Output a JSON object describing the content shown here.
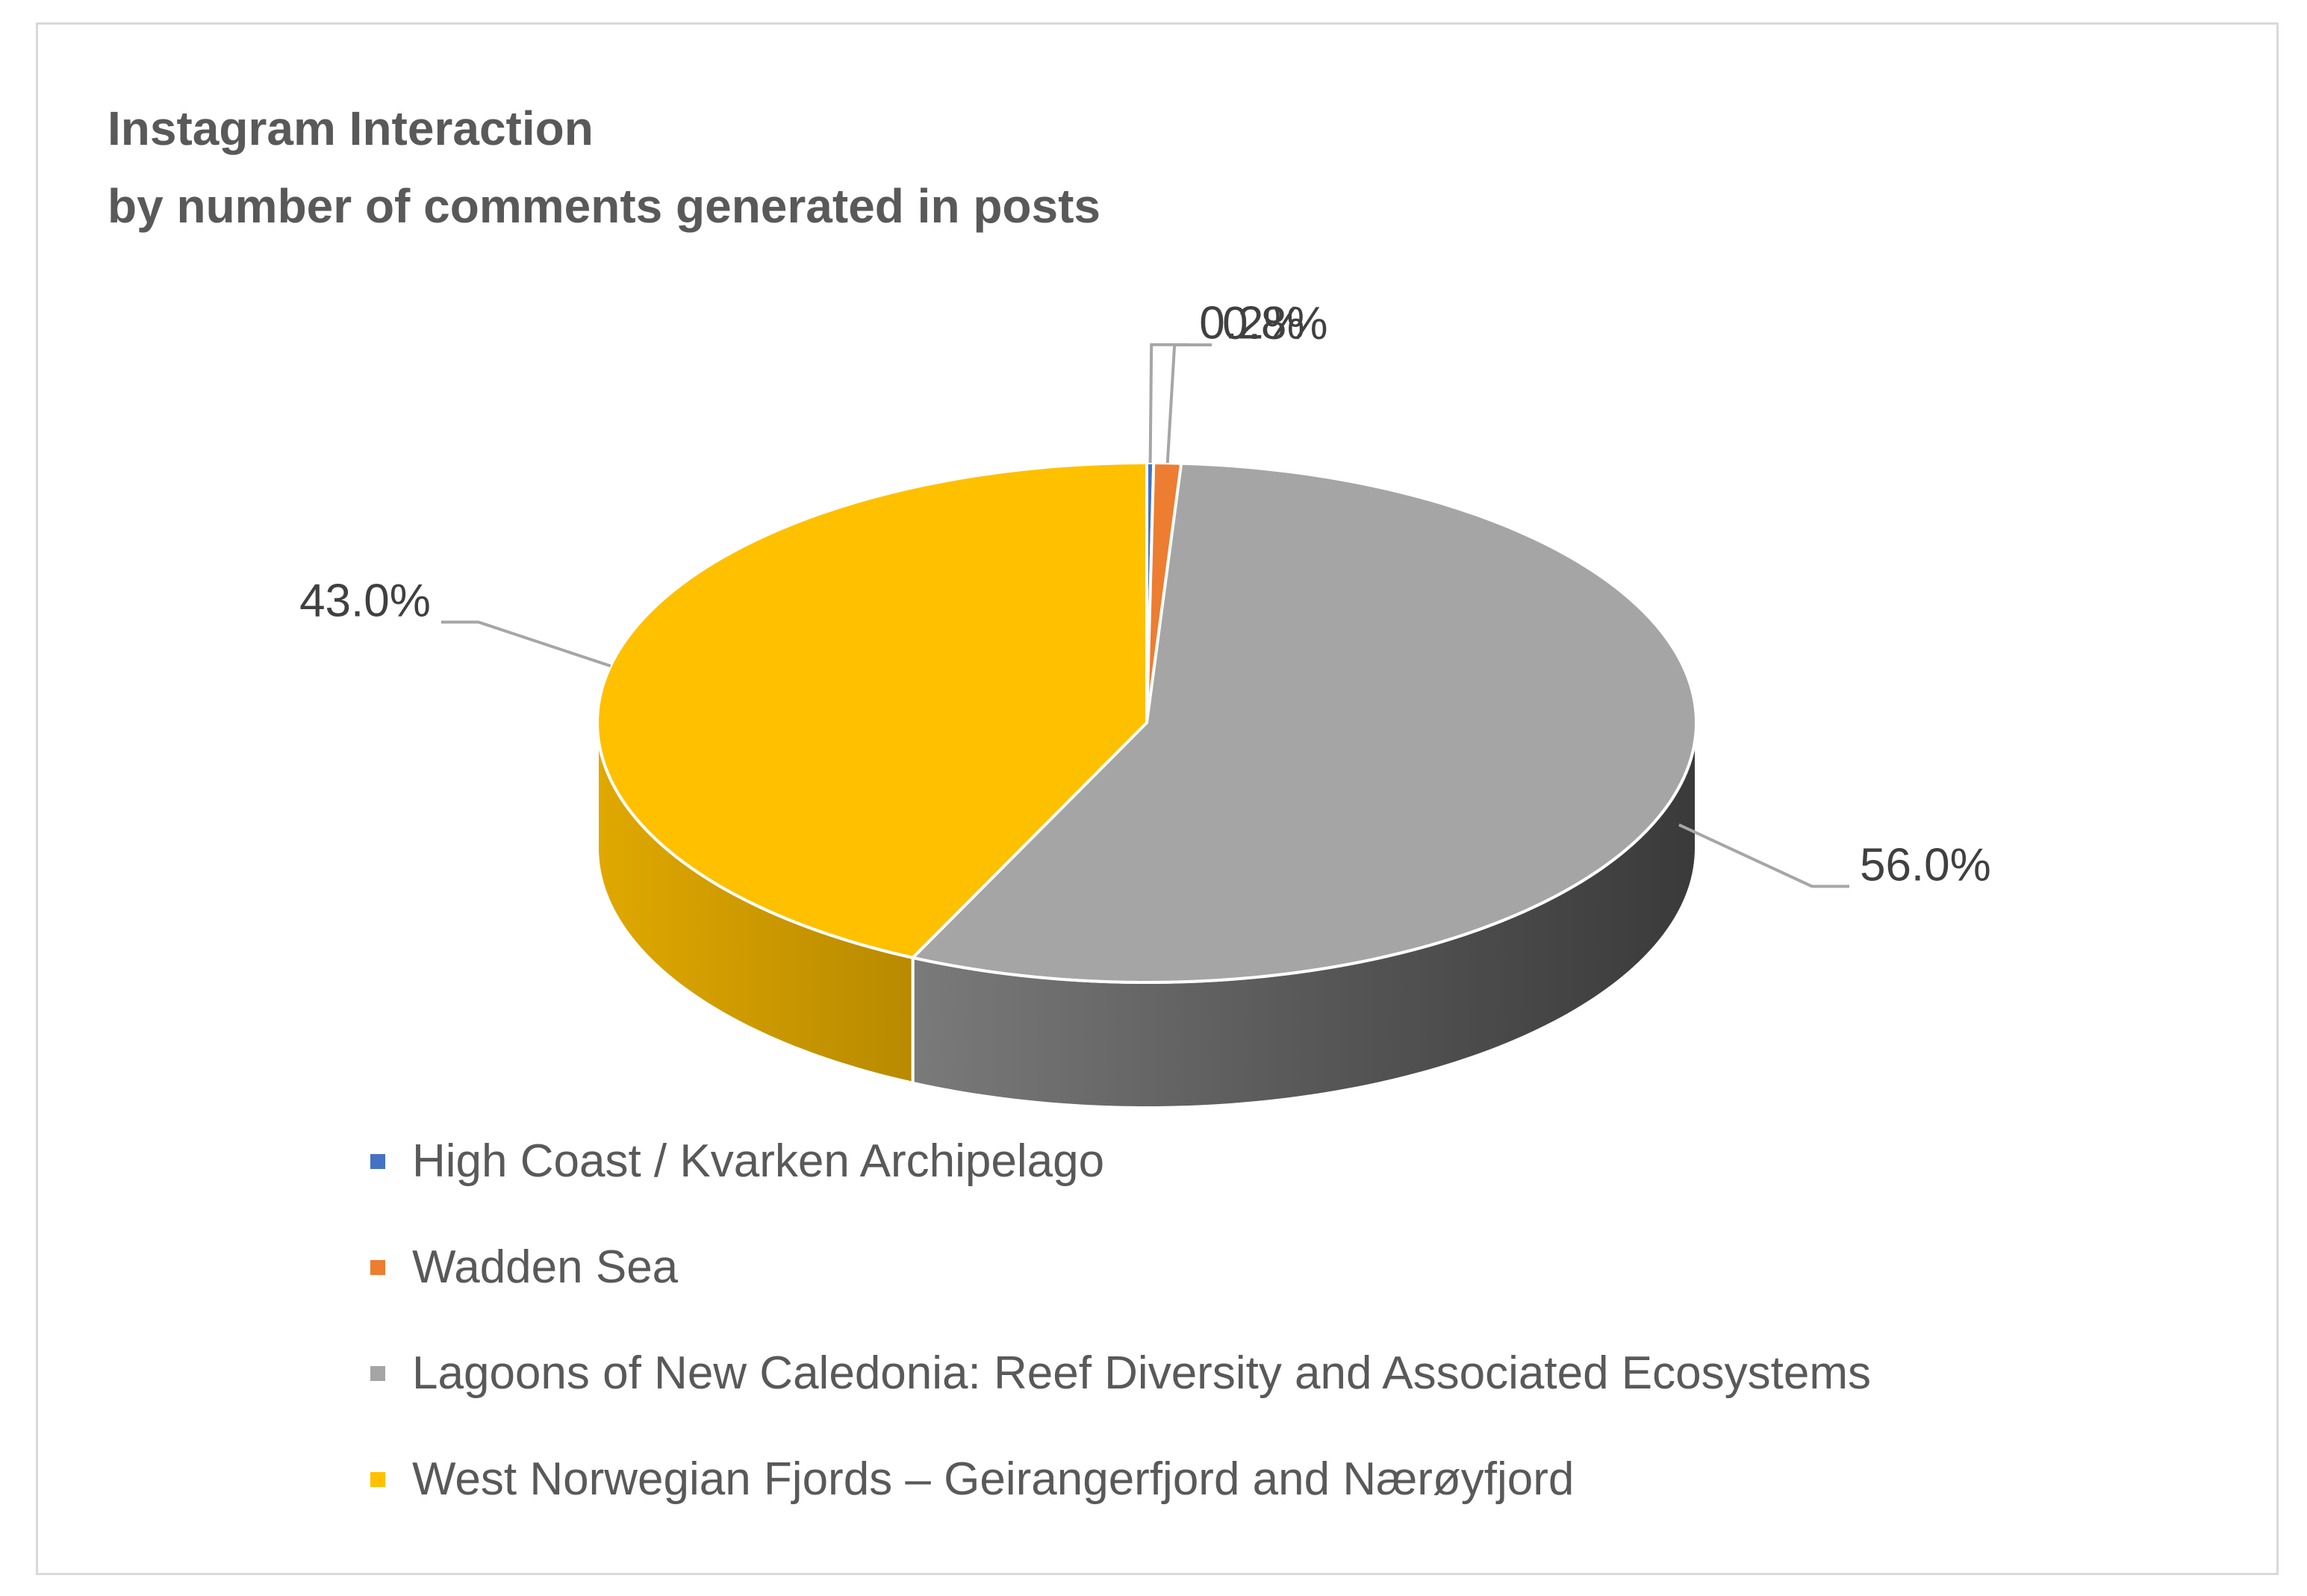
{
  "chart_data": {
    "type": "pie",
    "title": "Instagram Interaction",
    "subtitle": "by number of comments generated in posts",
    "style": "3d",
    "legend_position": "bottom",
    "slices": [
      {
        "label": "High Coast / Kvarken Archipelago",
        "value": 0.2,
        "data_label": "0.2%",
        "color": "#4472c4"
      },
      {
        "label": "Wadden Sea",
        "value": 0.8,
        "data_label": "0.8%",
        "color": "#ed7d31"
      },
      {
        "label": "Lagoons of New Caledonia: Reef Diversity and Associated Ecosystems",
        "value": 56.0,
        "data_label": "56.0%",
        "color": "#a5a5a5"
      },
      {
        "label": "West Norwegian Fjords – Geirangerfjord and Nærøyfjord",
        "value": 43.0,
        "data_label": "43.0%",
        "color": "#ffc000"
      }
    ]
  }
}
